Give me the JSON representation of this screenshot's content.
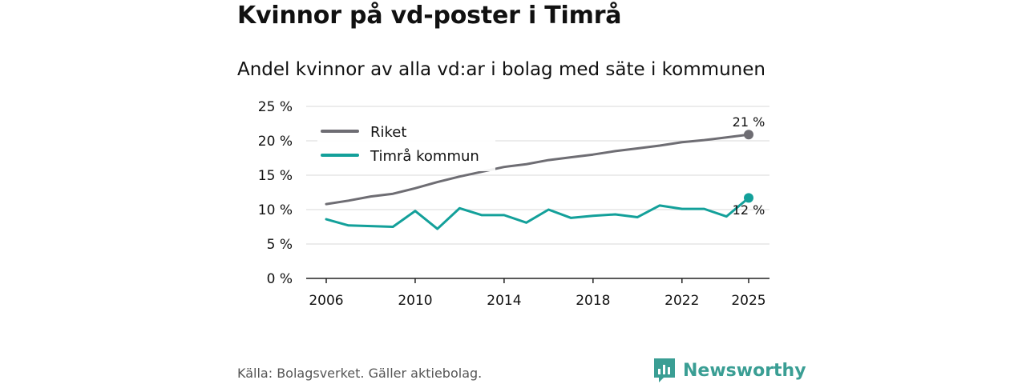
{
  "title": "Kvinnor på vd-poster i Timrå",
  "subtitle": "Andel kvinnor av alla vd:ar i bolag med säte i kommunen",
  "source": "Källa: Bolagsverket. Gäller aktiebolag.",
  "brand": "Newsworthy",
  "colors": {
    "riket": "#6e6d73",
    "timra": "#13a09a",
    "grid": "#d9d9d9",
    "axis": "#222222"
  },
  "chart_data": {
    "type": "line",
    "title": "Kvinnor på vd-poster i Timrå",
    "subtitle": "Andel kvinnor av alla vd:ar i bolag med säte i kommunen",
    "xlabel": "",
    "ylabel": "",
    "x": [
      2006,
      2007,
      2008,
      2009,
      2010,
      2011,
      2012,
      2013,
      2014,
      2015,
      2016,
      2017,
      2018,
      2019,
      2020,
      2021,
      2022,
      2023,
      2024,
      2025
    ],
    "xlim": [
      2006,
      2025
    ],
    "ylim": [
      0,
      25
    ],
    "x_ticks": [
      2006,
      2010,
      2014,
      2018,
      2022,
      2025
    ],
    "y_ticks": [
      0,
      5,
      10,
      15,
      20,
      25
    ],
    "y_tick_labels": [
      "0 %",
      "5 %",
      "10 %",
      "15 %",
      "20 %",
      "25 %"
    ],
    "grid": true,
    "legend_position": "top-left",
    "series": [
      {
        "name": "Riket",
        "color": "#6e6d73",
        "values": [
          10.8,
          11.3,
          11.9,
          12.3,
          13.1,
          14.0,
          14.8,
          15.5,
          16.2,
          16.6,
          17.2,
          17.6,
          18.0,
          18.5,
          18.9,
          19.3,
          19.8,
          20.1,
          20.5,
          20.9
        ],
        "end_label": "21 %"
      },
      {
        "name": "Timrå kommun",
        "color": "#13a09a",
        "values": [
          8.6,
          7.7,
          7.6,
          7.5,
          9.8,
          7.2,
          10.2,
          9.2,
          9.2,
          8.1,
          10.0,
          8.8,
          9.1,
          9.3,
          8.9,
          10.6,
          10.1,
          10.1,
          9.0,
          11.7
        ],
        "end_label": "12 %"
      }
    ]
  }
}
